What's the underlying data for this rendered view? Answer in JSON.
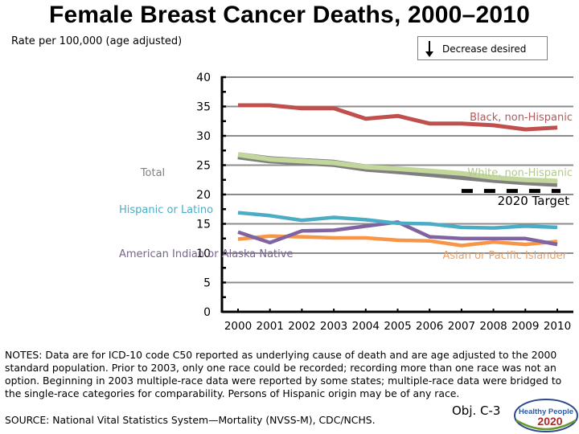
{
  "header": {
    "title": "Female Breast Cancer Deaths, 2000–2010",
    "subtitle": "Rate per 100,000 (age adjusted)",
    "decrease_label": "Decrease desired"
  },
  "chart_data": {
    "type": "line",
    "title": "Female Breast Cancer Deaths, 2000–2010",
    "ylabel": "Rate per 100,000 (age adjusted)",
    "xlabel": "",
    "x": [
      2000,
      2001,
      2002,
      2003,
      2004,
      2005,
      2006,
      2007,
      2008,
      2009,
      2010
    ],
    "x_tick_labels": [
      "2000",
      "2001",
      "2002",
      "2003",
      "2004",
      "2005",
      "2006",
      "2007",
      "2008",
      "2009",
      "2010"
    ],
    "ylim": [
      0,
      40
    ],
    "y_ticks": [
      0,
      5,
      10,
      15,
      20,
      25,
      30,
      35,
      40
    ],
    "y_tick_labels": [
      "0",
      "5",
      "10",
      "15",
      "20",
      "25",
      "30",
      "35",
      "40"
    ],
    "grid": true,
    "series": [
      {
        "name": "Black, non-Hispanic",
        "color": "#c0504d",
        "label_color": "#b0595a",
        "values": [
          35.2,
          35.2,
          34.7,
          34.7,
          32.9,
          33.4,
          32.1,
          32.1,
          31.8,
          31.1,
          31.4
        ]
      },
      {
        "name": "Total",
        "color": "#7f7f7f",
        "label_color": "#7f7f7f",
        "values": [
          26.6,
          25.9,
          25.6,
          25.3,
          24.5,
          24.1,
          23.6,
          23.1,
          22.6,
          22.2,
          21.9
        ]
      },
      {
        "name": "White, non-Hispanic",
        "color": "#c3d69b",
        "label_color": "#b3c88e",
        "values": [
          26.8,
          26.0,
          25.7,
          25.4,
          24.7,
          24.4,
          24.0,
          23.6,
          22.9,
          22.5,
          22.3
        ]
      },
      {
        "name": "Hispanic or Latino",
        "color": "#4bacc6",
        "label_color": "#4bacc6",
        "values": [
          16.9,
          16.4,
          15.6,
          16.1,
          15.7,
          15.1,
          15.0,
          14.4,
          14.3,
          14.6,
          14.4
        ]
      },
      {
        "name": "American Indian or Alaska Native",
        "color": "#8064a2",
        "label_color": "#76648c",
        "values": [
          13.6,
          11.8,
          13.8,
          13.9,
          14.6,
          15.3,
          12.8,
          12.5,
          12.5,
          12.5,
          11.5
        ]
      },
      {
        "name": "Asian or Pacific Islander",
        "color": "#f79646",
        "label_color": "#f0a060",
        "values": [
          12.4,
          12.9,
          12.8,
          12.6,
          12.6,
          12.2,
          12.1,
          11.3,
          11.9,
          11.5,
          12.0
        ]
      }
    ],
    "target": {
      "name": "2020 Target",
      "value": 20.6,
      "x_range": [
        2007,
        2010
      ],
      "color": "#000000"
    },
    "annotations": [
      "Black, non-Hispanic",
      "White, non-Hispanic",
      "2020 Target",
      "Total",
      "Hispanic or Latino",
      "American Indian or Alaska Native",
      "Asian or Pacific Islander"
    ]
  },
  "footer": {
    "notes": "NOTES:  Data are for ICD-10 code C50 reported as underlying cause of death and are age adjusted to the 2000 standard population. Prior to 2003, only one race could be recorded; recording more than one race was not an option. Beginning in 2003 multiple-race data were reported by some states; multiple-race data were bridged to the single-race categories for comparability. Persons of Hispanic origin may be of any race.",
    "source": "SOURCE: National Vital Statistics System—Mortality (NVSS-M), CDC/NCHS.",
    "objective": "Obj. C-3",
    "logo_line1": "Healthy People",
    "logo_line2": "2020"
  }
}
